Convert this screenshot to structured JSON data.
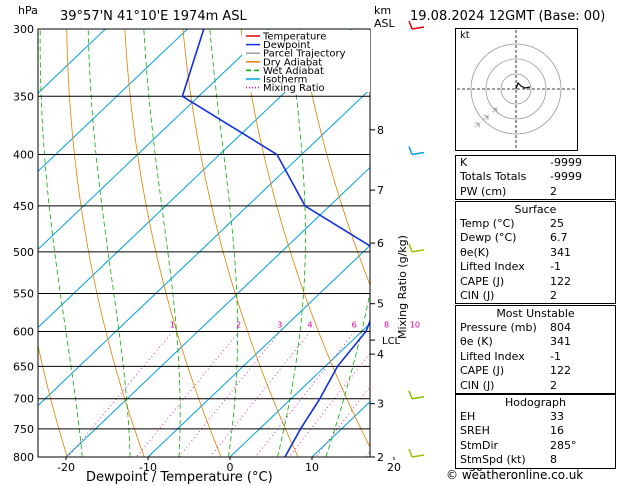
{
  "header": {
    "hpa_label": "hPa",
    "location": "39°57'N  41°10'E  1974m  ASL",
    "km_label": "km",
    "asl_label": "ASL",
    "datetime": "19.08.2024  12GMT  (Base: 00)"
  },
  "legend": [
    "Temperature",
    "Dewpoint",
    "Parcel Trajectory",
    "Dry Adiabat",
    "Wet Adiabat",
    "Isotherm",
    "Mixing Ratio"
  ],
  "colors": {
    "temperature": "#e00000",
    "dewpoint": "#1030e0",
    "parcel": "#a0a0a0",
    "dry_adiabat": "#e08000",
    "wet_adiabat": "#00b000",
    "isotherm": "#00a0e0",
    "mixing_ratio": "#e000a0"
  },
  "chart_data": {
    "type": "line",
    "xlabel": "Dewpoint / Temperature (°C)",
    "ylabel": "Mixing Ratio (g/kg)",
    "pressure_ticks": [
      300,
      350,
      400,
      450,
      500,
      550,
      600,
      650,
      700,
      750,
      800
    ],
    "temp_ticks": [
      -40,
      -30,
      -20,
      -10,
      0,
      10,
      20,
      30
    ],
    "km_ticks": [
      {
        "km": "2",
        "p": 800
      },
      {
        "km": "3",
        "p": 708
      },
      {
        "km": "4",
        "p": 632
      },
      {
        "km": "5",
        "p": 563
      },
      {
        "km": "6",
        "p": 490
      },
      {
        "km": "7",
        "p": 434
      },
      {
        "km": "8",
        "p": 378
      }
    ],
    "lcl_label": "LCL",
    "lcl_pressure": 612,
    "mixing_ratio_labels": [
      {
        "label": "1",
        "w": 1
      },
      {
        "label": "2",
        "w": 2
      },
      {
        "label": "3",
        "w": 3
      },
      {
        "label": "4",
        "w": 4
      },
      {
        "label": "6",
        "w": 6
      },
      {
        "label": "8",
        "w": 8
      },
      {
        "label": "10",
        "w": 10
      },
      {
        "label": "15",
        "w": 15
      },
      {
        "label": "20",
        "w": 20
      },
      {
        "label": "25",
        "w": 25
      }
    ],
    "series": [
      {
        "name": "Temperature",
        "points": [
          [
            800,
            25
          ],
          [
            750,
            20
          ],
          [
            700,
            15.5
          ],
          [
            650,
            11
          ],
          [
            600,
            6.5
          ],
          [
            550,
            1.5
          ],
          [
            500,
            -3.5
          ],
          [
            450,
            -9
          ],
          [
            400,
            -16.5
          ],
          [
            350,
            -24
          ],
          [
            300,
            -33
          ]
        ]
      },
      {
        "name": "Dewpoint",
        "points": [
          [
            800,
            6.7
          ],
          [
            750,
            5
          ],
          [
            700,
            3.5
          ],
          [
            650,
            1.5
          ],
          [
            600,
            0.5
          ],
          [
            550,
            -2.5
          ],
          [
            500,
            -8
          ],
          [
            450,
            -23
          ],
          [
            400,
            -33
          ],
          [
            350,
            -52
          ],
          [
            300,
            -58
          ]
        ]
      },
      {
        "name": "Parcel Trajectory",
        "points": [
          [
            800,
            25
          ],
          [
            700,
            16
          ],
          [
            612,
            7.5
          ],
          [
            550,
            2.5
          ],
          [
            500,
            -2.5
          ],
          [
            450,
            -8
          ],
          [
            400,
            -14.5
          ],
          [
            350,
            -22
          ],
          [
            300,
            -31
          ]
        ]
      }
    ]
  },
  "hodograph": {
    "label": "kt"
  },
  "stats": {
    "top": [
      {
        "label": "K",
        "value": "-9999"
      },
      {
        "label": "Totals Totals",
        "value": "-9999"
      },
      {
        "label": "PW (cm)",
        "value": "2"
      }
    ],
    "surface": {
      "title": "Surface",
      "rows": [
        {
          "label": "Temp (°C)",
          "value": "25"
        },
        {
          "label": "Dewp (°C)",
          "value": "6.7"
        },
        {
          "label": "θe(K)",
          "value": "341"
        },
        {
          "label": "Lifted Index",
          "value": "-1"
        },
        {
          "label": "CAPE (J)",
          "value": "122"
        },
        {
          "label": "CIN (J)",
          "value": "2"
        }
      ]
    },
    "unstable": {
      "title": "Most Unstable",
      "rows": [
        {
          "label": "Pressure (mb)",
          "value": "804"
        },
        {
          "label": "θe (K)",
          "value": "341"
        },
        {
          "label": "Lifted Index",
          "value": "-1"
        },
        {
          "label": "CAPE (J)",
          "value": "122"
        },
        {
          "label": "CIN (J)",
          "value": "2"
        }
      ]
    },
    "hodograph": {
      "title": "Hodograph",
      "rows": [
        {
          "label": "EH",
          "value": "33"
        },
        {
          "label": "SREH",
          "value": "16"
        },
        {
          "label": "StmDir",
          "value": "285°"
        },
        {
          "label": "StmSpd (kt)",
          "value": "8"
        }
      ]
    }
  },
  "footer": "© weatheronline.co.uk"
}
